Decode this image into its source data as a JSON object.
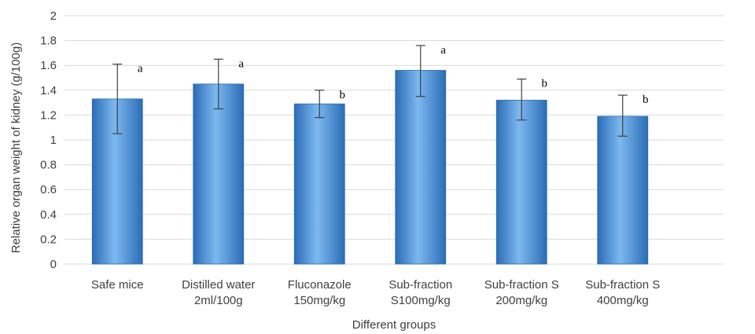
{
  "chart_data": {
    "type": "bar",
    "title": "",
    "xlabel": "Different groups",
    "ylabel": "Relative organ weight of kidney (g/100g)",
    "ylim": [
      0,
      2
    ],
    "yticks": [
      "0",
      "0.2",
      "0.4",
      "0.6",
      "0.8",
      "1",
      "1.2",
      "1.4",
      "1.6",
      "1.8",
      "2"
    ],
    "grid": true,
    "categories": [
      [
        "Safe mice"
      ],
      [
        "Distilled water",
        "2ml/100g"
      ],
      [
        "Fluconazole",
        "150mg/kg"
      ],
      [
        "Sub-fraction",
        "S100mg/kg"
      ],
      [
        "Sub-fraction S",
        "200mg/kg"
      ],
      [
        "Sub-fraction S",
        "400mg/kg"
      ]
    ],
    "values": [
      1.33,
      1.45,
      1.29,
      1.56,
      1.32,
      1.19
    ],
    "error_bars": [
      [
        1.05,
        1.61
      ],
      [
        1.25,
        1.65
      ],
      [
        1.18,
        1.4
      ],
      [
        1.35,
        1.76
      ],
      [
        1.16,
        1.49
      ],
      [
        1.03,
        1.36
      ]
    ],
    "significance_labels": [
      "a",
      "a",
      "b",
      "a",
      "b",
      "b"
    ],
    "bar_color": "#4f94dc",
    "bar_color_light": "#7db8ef",
    "bar_color_dark": "#2b6cb5"
  }
}
